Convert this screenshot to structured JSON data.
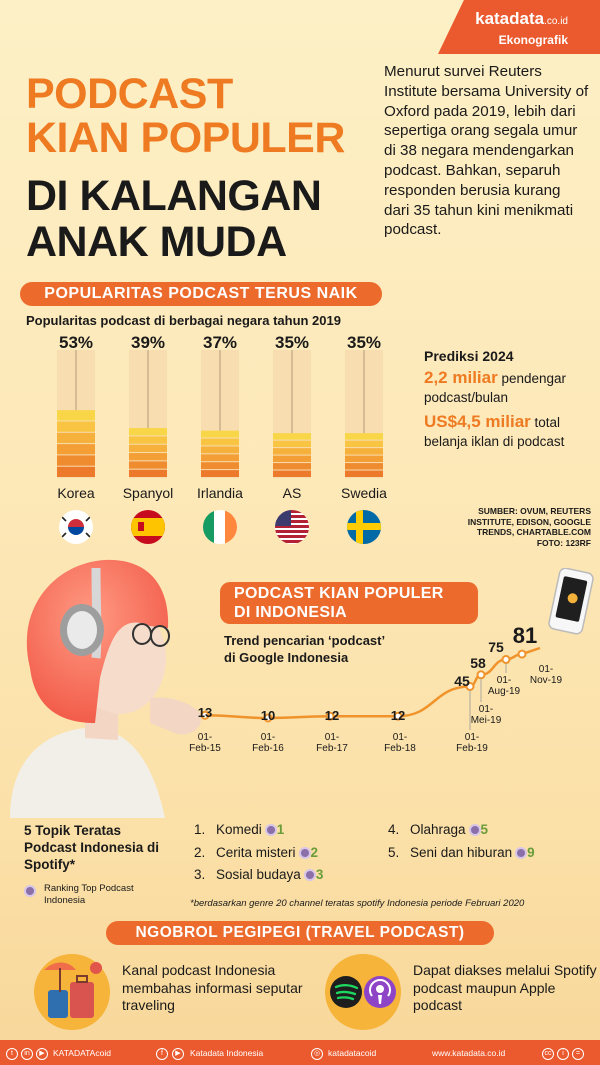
{
  "brand": {
    "name": "katadata",
    "suffix": ".co.id",
    "section": "Ekonografik"
  },
  "title": {
    "line1": "PODCAST",
    "line2": "KIAN POPULER",
    "line3": "DI KALANGAN",
    "line4": "ANAK MUDA"
  },
  "intro": "Menurut survei Reuters Institute bersama University of Oxford pada 2019, lebih dari sepertiga orang segala umur di 38 negara mendengarkan podcast. Bahkan, separuh responden berusia kurang dari 35 tahun kini menikmati podcast.",
  "section1": {
    "banner": "POPULARITAS PODCAST TERUS NAIK",
    "subtitle": "Popularitas podcast di berbagai negara tahun 2019"
  },
  "prediction": {
    "heading": "Prediksi 2024",
    "listeners_value": "2,2 miliar",
    "listeners_text": " pendengar podcast/bulan",
    "ads_value": "US$4,5 miliar",
    "ads_text": " total belanja iklan di podcast"
  },
  "source": "SUMBER: OVUM, REUTERS INSTITUTE, EDISON, GOOGLE TRENDS, CHARTABLE.COM\nFOTO: 123RF",
  "section2": {
    "banner_line1": "PODCAST KIAN POPULER",
    "banner_line2": "DI INDONESIA",
    "subtitle_line1": "Trend pencarian ‘podcast’",
    "subtitle_line2": "di Google Indonesia"
  },
  "chart_data": [
    {
      "type": "bar",
      "title": "Popularitas podcast di berbagai negara tahun 2019",
      "categories": [
        "Korea",
        "Spanyol",
        "Irlandia",
        "AS",
        "Swedia"
      ],
      "values": [
        53,
        39,
        37,
        35,
        35
      ],
      "labels": [
        "53%",
        "39%",
        "37%",
        "35%",
        "35%"
      ],
      "ylim": [
        0,
        100
      ],
      "flags": [
        "south-korea-flag",
        "spain-flag",
        "ireland-flag",
        "usa-flag",
        "sweden-flag"
      ]
    },
    {
      "type": "line",
      "title": "Trend pencarian ‘podcast’ di Google Indonesia",
      "x": [
        "01-Feb-15",
        "01-Feb-16",
        "01-Feb-17",
        "01-Feb-18",
        "01-Feb-19",
        "01-Mei-19",
        "01-Aug-19",
        "01-Nov-19"
      ],
      "values": [
        13,
        10,
        12,
        12,
        45,
        58,
        75,
        81
      ],
      "ylim": [
        0,
        100
      ]
    }
  ],
  "topics": {
    "heading": "5 Topik Teratas Podcast Indonesia di Spotify*",
    "rank_note": "Ranking Top Podcast Indonesia",
    "items": [
      {
        "num": "1.",
        "name": "Komedi",
        "rank": "1"
      },
      {
        "num": "2.",
        "name": "Cerita misteri",
        "rank": "2"
      },
      {
        "num": "3.",
        "name": "Sosial budaya",
        "rank": "3"
      },
      {
        "num": "4.",
        "name": "Olahraga",
        "rank": "5"
      },
      {
        "num": "5.",
        "name": "Seni dan hiburan",
        "rank": "9"
      }
    ],
    "footnote": "*berdasarkan genre 20 channel teratas spotify Indonesia periode Februari 2020"
  },
  "section3": {
    "banner": "NGOBROL PEGIPEGI (TRAVEL PODCAST)",
    "left_text": "Kanal podcast Indonesia membahas informasi seputar traveling",
    "right_text": "Dapat diakses melalui Spotify podcast maupun Apple podcast"
  },
  "footer": {
    "handle": "KATADATAcoid",
    "facebook": "Katadata Indonesia",
    "instagram": "katadatacoid",
    "website": "www.katadata.co.id"
  },
  "colors": {
    "accent": "#ee7a22",
    "banner": "#ec6a2c",
    "background": "#fdf0c6"
  }
}
